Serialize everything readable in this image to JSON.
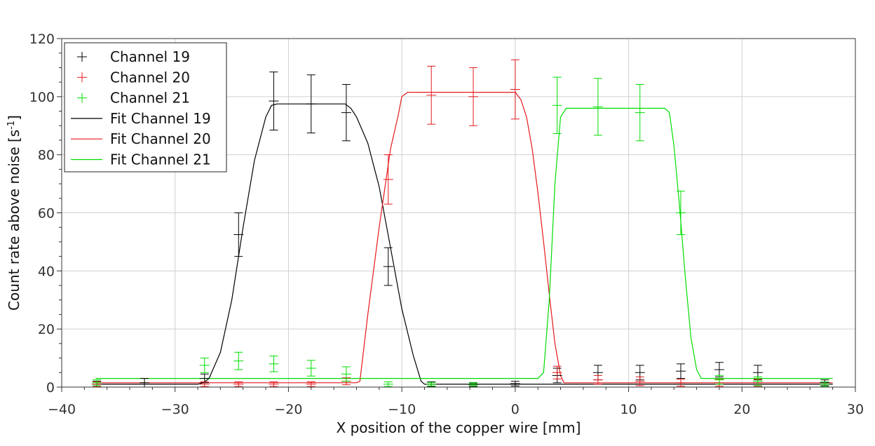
{
  "chart_data": {
    "type": "scatter",
    "xlabel": "X position of the copper wire [mm]",
    "ylabel": "Count rate above noise [s",
    "ylabel_sup": "-1",
    "ylabel_end": "]",
    "xlim": [
      -40,
      30
    ],
    "ylim": [
      0,
      120
    ],
    "xticks": [
      -40,
      -30,
      -20,
      -10,
      0,
      10,
      20,
      30
    ],
    "xtick_labels": [
      "−40",
      "−30",
      "−20",
      "−10",
      "0",
      "10",
      "20",
      "30"
    ],
    "yticks": [
      0,
      20,
      40,
      60,
      80,
      100,
      120
    ],
    "ytick_labels": [
      "0",
      "20",
      "40",
      "60",
      "80",
      "100",
      "120"
    ],
    "grid": true,
    "legend_position": "top-left",
    "series": [
      {
        "name": "Channel 19",
        "kind": "points",
        "color": "#000000",
        "x": [
          -36.9,
          -32.7,
          -27.4,
          -24.4,
          -21.3,
          -18.0,
          -14.9,
          -11.2,
          -7.4,
          -3.7,
          0.0,
          3.7,
          7.3,
          11.0,
          14.6,
          18.0,
          21.4,
          27.3
        ],
        "y": [
          1.0,
          1.5,
          3.0,
          52.5,
          98.5,
          97.5,
          94.5,
          41.5,
          1.0,
          0.8,
          1.2,
          4.0,
          5.0,
          5.0,
          5.5,
          6.0,
          5.0,
          1.5
        ],
        "err": [
          1.0,
          1.5,
          1.5,
          7.5,
          10.0,
          10.0,
          9.7,
          6.5,
          0.8,
          0.6,
          0.8,
          2.5,
          2.5,
          2.5,
          2.5,
          2.5,
          2.5,
          1.0
        ]
      },
      {
        "name": "Channel 20",
        "kind": "points",
        "color": "#e41a1c",
        "x": [
          -36.9,
          -27.4,
          -24.4,
          -21.3,
          -18.0,
          -14.9,
          -11.2,
          -7.4,
          -3.7,
          0.0,
          3.7,
          7.3,
          11.0,
          14.6,
          18.0,
          21.4
        ],
        "y": [
          1.0,
          1.0,
          1.0,
          1.0,
          1.0,
          2.0,
          71.5,
          100.5,
          100.0,
          102.5,
          5.0,
          2.5,
          2.0,
          1.5,
          1.5,
          1.5
        ],
        "err": [
          0.8,
          0.8,
          0.8,
          0.8,
          0.8,
          1.2,
          8.5,
          10.0,
          10.0,
          10.2,
          2.2,
          1.5,
          1.5,
          1.2,
          1.2,
          1.2
        ]
      },
      {
        "name": "Channel 21",
        "kind": "points",
        "color": "#00dd00",
        "x": [
          -36.9,
          -27.4,
          -24.4,
          -21.3,
          -18.0,
          -14.9,
          -11.2,
          -7.4,
          -3.7,
          3.7,
          7.3,
          11.0,
          14.6,
          18.0,
          21.4,
          27.3
        ],
        "y": [
          1.5,
          7.5,
          9.0,
          8.0,
          6.5,
          4.5,
          1.0,
          1.0,
          1.0,
          97.0,
          96.5,
          94.5,
          60.0,
          2.5,
          2.0,
          1.0
        ],
        "err": [
          1.0,
          2.5,
          3.0,
          2.7,
          2.7,
          2.5,
          0.8,
          0.6,
          0.6,
          9.7,
          9.8,
          9.7,
          7.5,
          1.5,
          1.5,
          0.8
        ]
      },
      {
        "name": "Fit Channel 19",
        "kind": "line",
        "color": "#000000",
        "x": [
          -37,
          -28,
          -27.5,
          -27,
          -26,
          -25,
          -24,
          -23,
          -22,
          -21.5,
          -21,
          -15,
          -14.5,
          -14,
          -13,
          -12,
          -11,
          -10,
          -9,
          -8.3,
          -8,
          28
        ],
        "y": [
          1,
          1,
          1.5,
          3,
          12,
          30,
          55,
          78,
          93,
          97,
          97.5,
          97.5,
          96,
          93,
          84,
          69,
          48,
          27,
          11,
          2,
          1,
          1
        ]
      },
      {
        "name": "Fit Channel 20",
        "kind": "line",
        "color": "#e41a1c",
        "x": [
          -37,
          -14,
          -13.7,
          -13,
          -12,
          -11,
          -10.3,
          -10,
          -9.5,
          0,
          0.5,
          1,
          1.5,
          2,
          2.5,
          3,
          3.5,
          4,
          4.3,
          28
        ],
        "y": [
          1.5,
          1.5,
          2,
          25,
          55,
          82,
          94,
          100,
          101.5,
          101.5,
          99,
          93,
          82,
          67,
          50,
          32,
          15,
          4,
          1.5,
          1.5
        ]
      },
      {
        "name": "Fit Channel 21",
        "kind": "line",
        "color": "#00dd00",
        "x": [
          -37,
          2,
          2.5,
          3,
          3.5,
          4,
          4.5,
          13.2,
          13.6,
          14,
          14.5,
          15,
          15.5,
          16,
          16.4,
          28
        ],
        "y": [
          3,
          3,
          5,
          30,
          70,
          93,
          96,
          96,
          94.5,
          83,
          62,
          38,
          17,
          6,
          3,
          3
        ]
      }
    ]
  }
}
